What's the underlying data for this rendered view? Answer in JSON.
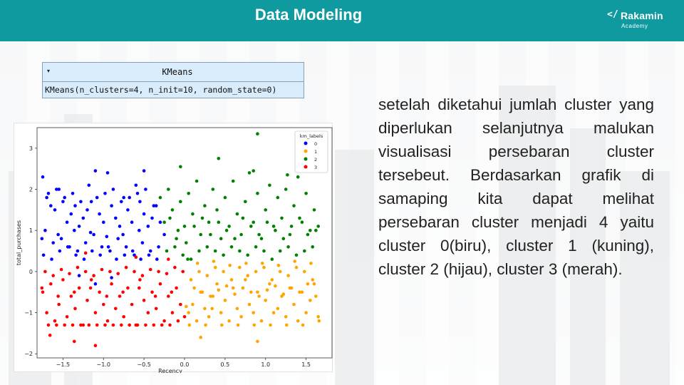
{
  "header": {
    "title": "Data Modeling"
  },
  "logo": {
    "mark": "</",
    "name": "Rakamin",
    "sub": "Academy"
  },
  "model_box": {
    "caret": "▾",
    "name": "KMeans",
    "params": "KMeans(n_clusters=4, n_init=10, random_state=0)",
    "background": "#d9ecfb"
  },
  "description": "setelah diketahui jumlah cluster yang diperlukan selanjutnya malukan visualisasi persebaran cluster tersebeut. Berdasarkan grafik di samaping kita dapat melihat persebaran cluster menjadi 4 yaitu cluster 0(biru), cluster 1 (kuning), cluster 2 (hijau), cluster 3 (merah).",
  "colors": {
    "header": "#0f9aa0",
    "text": "#222222"
  },
  "chart_data": {
    "type": "scatter",
    "xlabel": "Recency",
    "ylabel": "total_purchases",
    "xlim": [
      -1.82,
      1.82
    ],
    "ylim": [
      -2.1,
      3.5
    ],
    "xticks": [
      -1.5,
      -1.0,
      -0.5,
      0.0,
      0.5,
      1.0,
      1.5
    ],
    "xtick_labels": [
      "−1.5",
      "−1.0",
      "−0.5",
      "0.0",
      "0.5",
      "1.0",
      "1.5"
    ],
    "yticks": [
      -2,
      -1,
      0,
      1,
      2,
      3
    ],
    "ytick_labels": [
      "−2",
      "−1",
      "0",
      "1",
      "2",
      "3"
    ],
    "grid": false,
    "legend": {
      "title": "km_labels",
      "placement": "top-right"
    },
    "series": [
      {
        "name": "0",
        "color": "#0000ff",
        "x": [
          -1.75,
          -1.7,
          -1.65,
          -1.6,
          -1.55,
          -1.5,
          -1.45,
          -1.4,
          -1.35,
          -1.3,
          -1.25,
          -1.2,
          -1.15,
          -1.1,
          -1.05,
          -1.0,
          -0.95,
          -0.9,
          -0.85,
          -0.8,
          -0.75,
          -0.7,
          -0.65,
          -0.6,
          -0.55,
          -0.5,
          -0.45,
          -0.4,
          -0.35,
          -0.3,
          -0.25,
          -1.72,
          -1.62,
          -1.52,
          -1.42,
          -1.32,
          -1.22,
          -1.12,
          -1.02,
          -0.92,
          -0.82,
          -0.72,
          -0.62,
          -0.52,
          -0.42,
          -0.32,
          -1.74,
          -1.64,
          -1.54,
          -1.44,
          -1.34,
          -1.24,
          -1.14,
          -1.04,
          -0.94,
          -0.84,
          -0.74,
          -0.64,
          -0.54,
          -0.44,
          -0.34,
          -1.68,
          -1.58,
          -1.48,
          -1.38,
          -1.28,
          -1.18,
          -1.08,
          -0.98,
          -0.88,
          -0.78,
          -0.68,
          -0.58,
          -0.48,
          -0.38,
          -1.76,
          -1.56,
          -1.36,
          -1.16,
          -0.96,
          -0.76,
          -0.56,
          -1.1,
          -0.5,
          -0.9,
          -1.3
        ],
        "y": [
          2.3,
          1.8,
          1.6,
          1.5,
          2.0,
          1.7,
          1.2,
          1.4,
          1.6,
          1.1,
          1.3,
          1.5,
          1.7,
          2.45,
          1.4,
          1.2,
          2.4,
          1.6,
          1.3,
          1.1,
          1.8,
          1.5,
          1.2,
          2.1,
          1.7,
          1.4,
          1.1,
          1.3,
          1.6,
          1.2,
          0.9,
          1.0,
          0.7,
          0.8,
          0.6,
          0.5,
          0.7,
          0.9,
          0.6,
          0.5,
          0.8,
          0.6,
          0.4,
          0.7,
          0.5,
          0.6,
          0.4,
          0.3,
          0.5,
          0.6,
          0.4,
          0.3,
          0.5,
          0.4,
          0.6,
          0.3,
          0.4,
          0.5,
          0.3,
          0.4,
          0.3,
          1.9,
          2.0,
          1.8,
          1.9,
          1.7,
          2.1,
          1.8,
          1.9,
          2.0,
          1.7,
          1.8,
          1.9,
          2.0,
          1.6,
          0.8,
          0.9,
          1.0,
          0.95,
          0.85,
          0.9,
          1.0,
          -0.3,
          2.45,
          -0.15,
          -0.1
        ]
      },
      {
        "name": "1",
        "color": "#ffa500",
        "x": [
          0.05,
          0.1,
          0.15,
          0.2,
          0.25,
          0.3,
          0.35,
          0.4,
          0.45,
          0.5,
          0.55,
          0.6,
          0.65,
          0.7,
          0.75,
          0.8,
          0.85,
          0.9,
          0.95,
          1.0,
          1.05,
          1.1,
          1.15,
          1.2,
          1.25,
          1.3,
          1.35,
          1.4,
          1.45,
          1.5,
          1.55,
          1.6,
          1.65,
          0.08,
          0.18,
          0.28,
          0.38,
          0.48,
          0.58,
          0.68,
          0.78,
          0.88,
          0.98,
          1.08,
          1.18,
          1.28,
          1.38,
          1.48,
          1.58,
          0.12,
          0.22,
          0.32,
          0.42,
          0.52,
          0.62,
          0.72,
          0.82,
          0.92,
          1.02,
          1.12,
          1.22,
          1.32,
          1.42,
          1.52,
          1.62,
          0.06,
          0.26,
          0.46,
          0.66,
          0.86,
          1.06,
          1.26,
          1.46,
          1.66,
          0.16,
          0.36,
          0.56,
          0.76,
          0.96,
          1.16,
          1.36,
          1.56,
          0.2,
          0.9,
          0.02,
          0.34
        ],
        "y": [
          -1.0,
          -0.8,
          -1.2,
          -0.5,
          -0.9,
          -1.1,
          -0.6,
          -0.3,
          -1.0,
          -0.7,
          -1.2,
          -0.4,
          -0.9,
          -1.1,
          -0.2,
          -0.8,
          -1.0,
          -0.5,
          -1.2,
          -0.7,
          -0.3,
          -1.0,
          -0.9,
          -0.6,
          -1.1,
          -0.4,
          -0.8,
          -1.2,
          -0.5,
          -1.0,
          -0.7,
          -0.3,
          -1.1,
          -0.2,
          0.0,
          -0.1,
          0.1,
          0.0,
          -0.2,
          0.1,
          -0.1,
          0.0,
          0.1,
          -0.2,
          0.0,
          -0.1,
          0.1,
          0.0,
          -0.2,
          -0.4,
          -0.5,
          -0.6,
          -0.45,
          -0.35,
          -0.55,
          -0.4,
          -0.5,
          -0.6,
          -0.45,
          -0.35,
          -0.55,
          -0.4,
          -0.5,
          -0.3,
          -0.6,
          -1.3,
          -1.3,
          -1.3,
          -1.3,
          -1.3,
          -1.3,
          -1.3,
          -1.3,
          -1.2,
          0.2,
          0.25,
          0.15,
          0.2,
          0.2,
          0.15,
          0.25,
          0.2,
          -1.6,
          -1.7,
          -0.85,
          -0.9
        ]
      },
      {
        "name": "2",
        "color": "#008000",
        "x": [
          -0.3,
          -0.25,
          -0.2,
          -0.15,
          -0.1,
          -0.05,
          0.0,
          0.05,
          0.1,
          0.15,
          0.2,
          0.25,
          0.3,
          0.35,
          0.4,
          0.45,
          0.5,
          0.55,
          0.6,
          0.65,
          0.7,
          0.75,
          0.8,
          0.85,
          0.9,
          0.95,
          1.0,
          1.05,
          1.1,
          1.15,
          1.2,
          1.25,
          1.3,
          1.35,
          1.4,
          1.45,
          1.5,
          1.55,
          1.6,
          1.65,
          -0.22,
          -0.12,
          -0.02,
          0.08,
          0.18,
          0.28,
          0.38,
          0.48,
          0.58,
          0.68,
          0.78,
          0.88,
          0.98,
          1.08,
          1.18,
          1.28,
          1.38,
          1.48,
          1.58,
          -0.18,
          -0.08,
          0.02,
          0.12,
          0.22,
          0.32,
          0.42,
          0.52,
          0.62,
          0.72,
          0.82,
          0.92,
          1.02,
          1.12,
          1.22,
          1.32,
          1.42,
          1.52,
          1.62,
          0.9,
          0.42,
          -0.05,
          0.85,
          1.27,
          0.04
        ],
        "y": [
          1.8,
          1.2,
          2.0,
          1.5,
          0.8,
          1.7,
          1.1,
          1.9,
          1.4,
          2.2,
          0.9,
          1.6,
          1.2,
          2.0,
          1.5,
          0.8,
          1.8,
          1.1,
          2.2,
          1.4,
          0.9,
          1.7,
          2.4,
          1.2,
          1.9,
          0.8,
          1.5,
          2.1,
          1.1,
          1.8,
          1.3,
          2.0,
          0.9,
          1.6,
          2.3,
          1.2,
          1.9,
          1.0,
          1.5,
          1.1,
          0.5,
          0.6,
          0.4,
          0.3,
          0.5,
          0.6,
          0.5,
          0.4,
          0.6,
          0.5,
          0.4,
          0.6,
          0.5,
          0.3,
          0.5,
          0.6,
          0.4,
          0.5,
          0.6,
          1.3,
          1.0,
          0.7,
          1.1,
          1.3,
          0.9,
          1.2,
          1.0,
          0.8,
          1.3,
          1.1,
          0.9,
          1.2,
          1.0,
          0.8,
          1.1,
          1.3,
          0.9,
          1.0,
          3.35,
          2.75,
          2.55,
          2.45,
          2.35,
          0.3
        ],
        "note": ""
      },
      {
        "name": "3",
        "color": "#ff0000",
        "x": [
          -1.75,
          -1.7,
          -1.65,
          -1.6,
          -1.55,
          -1.5,
          -1.45,
          -1.4,
          -1.35,
          -1.3,
          -1.25,
          -1.2,
          -1.15,
          -1.1,
          -1.05,
          -1.0,
          -0.95,
          -0.9,
          -0.85,
          -0.8,
          -0.75,
          -0.7,
          -0.65,
          -0.6,
          -0.55,
          -0.5,
          -0.45,
          -0.4,
          -0.35,
          -0.3,
          -0.25,
          -0.2,
          -0.15,
          -0.1,
          -0.05,
          0.0,
          -1.72,
          -1.62,
          -1.52,
          -1.42,
          -1.32,
          -1.22,
          -1.12,
          -1.02,
          -0.92,
          -0.82,
          -0.72,
          -0.62,
          -0.52,
          -0.42,
          -0.32,
          -0.22,
          -0.12,
          -0.02,
          -1.68,
          -1.58,
          -1.48,
          -1.38,
          -1.28,
          -1.18,
          -1.08,
          -0.98,
          -0.88,
          -0.78,
          -0.68,
          -0.58,
          -0.48,
          -0.38,
          -0.28,
          -0.18,
          -0.08,
          -1.76,
          -1.56,
          -1.36,
          -1.16,
          -0.96,
          -0.76,
          -0.56,
          -0.36,
          -0.16,
          -1.66,
          -1.36,
          -1.1,
          -1.22,
          -0.6,
          -0.2
        ],
        "y": [
          -0.5,
          -1.0,
          -0.3,
          -1.2,
          -0.8,
          -0.2,
          -1.1,
          -0.6,
          -0.9,
          -0.4,
          -1.3,
          -0.7,
          -0.2,
          -1.0,
          -0.5,
          -0.8,
          -1.2,
          -0.3,
          -0.9,
          -0.6,
          -1.1,
          -0.4,
          -0.8,
          -1.3,
          -0.2,
          -0.7,
          -1.0,
          -0.5,
          -0.9,
          -0.3,
          -1.2,
          -0.6,
          -1.0,
          -0.4,
          -0.8,
          -1.1,
          0.0,
          -0.1,
          0.05,
          -0.05,
          0.1,
          0.0,
          -0.1,
          0.05,
          0.0,
          -0.05,
          0.1,
          0.0,
          -0.1,
          0.05,
          0.0,
          -0.05,
          0.1,
          0.0,
          -1.3,
          -1.3,
          -1.3,
          -1.3,
          -1.3,
          -1.3,
          -1.3,
          -1.3,
          -1.3,
          -1.3,
          -1.3,
          -1.3,
          -1.3,
          -1.3,
          -1.3,
          -1.3,
          -1.2,
          -0.4,
          -0.6,
          -0.5,
          -0.4,
          -0.6,
          -0.5,
          -0.4,
          -0.6,
          -0.5,
          -1.55,
          -1.7,
          -1.8,
          0.45,
          0.35,
          0.3
        ]
      }
    ]
  }
}
